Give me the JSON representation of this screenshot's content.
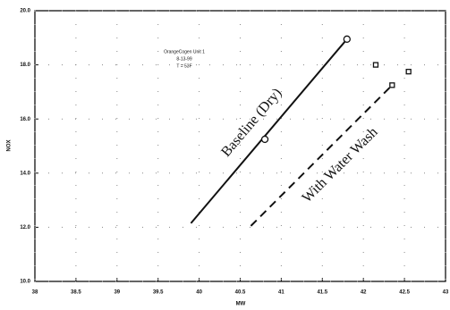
{
  "chart_data": {
    "type": "line",
    "annotation": [
      "OrangeCogen Unit 1",
      "8-13-99",
      "T = 53F"
    ],
    "xlabel": "MW",
    "ylabel": "NOX",
    "xlim": [
      38,
      43
    ],
    "xticks": [
      38,
      38.5,
      39,
      39.5,
      40,
      40.5,
      41,
      41.5,
      42,
      42.5,
      43
    ],
    "ylim": [
      10,
      20
    ],
    "yticks": [
      {
        "value": 10,
        "label": "10.0"
      },
      {
        "value": 12,
        "label": "12.0"
      },
      {
        "value": 14,
        "label": "14.0"
      },
      {
        "value": 16,
        "label": "16.0"
      },
      {
        "value": 18,
        "label": "18.0"
      },
      {
        "value": 20,
        "label": "20.0"
      }
    ],
    "grid": true,
    "series": [
      {
        "name": "Baseline (Dry)",
        "color": "#111111",
        "style": "solid",
        "x": [
          39.9,
          41.8
        ],
        "values": [
          12.15,
          18.95
        ]
      },
      {
        "name": "With Water Wash",
        "color": "#111111",
        "style": "dashed",
        "x": [
          40.63,
          42.35
        ],
        "values": [
          12.05,
          17.25
        ]
      },
      {
        "color": "#111111",
        "marker": "circle",
        "x": [
          40.8,
          41.8
        ],
        "values": [
          15.25,
          18.95
        ]
      },
      {
        "color": "#111111",
        "marker": "square",
        "x": [
          42.15,
          42.35,
          42.55
        ],
        "values": [
          18.0,
          17.25,
          17.75
        ]
      }
    ]
  }
}
